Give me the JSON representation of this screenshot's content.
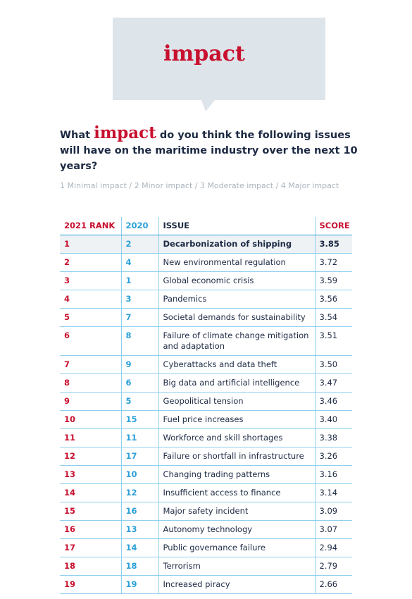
{
  "bubble": {
    "word": "impact"
  },
  "question": {
    "prefix": "What",
    "emphasis": "impact",
    "rest": "do you think the following issues will have on the maritime industry over the next 10 years?"
  },
  "scale": "1 Minimal impact / 2 Minor impact / 3 Moderate impact / 4 Major impact",
  "table": {
    "headers": [
      "2021 RANK",
      "2020",
      "ISSUE",
      "SCORE"
    ],
    "rows": [
      [
        "1",
        "2",
        "Decarbonization of shipping",
        "3.85"
      ],
      [
        "2",
        "4",
        "New environmental regulation",
        "3.72"
      ],
      [
        "3",
        "1",
        "Global economic crisis",
        "3.59"
      ],
      [
        "4",
        "3",
        "Pandemics",
        "3.56"
      ],
      [
        "5",
        "7",
        "Societal demands for sustainability",
        "3.54"
      ],
      [
        "6",
        "8",
        "Failure of climate change mitigation and adaptation",
        "3.51"
      ],
      [
        "7",
        "9",
        "Cyberattacks and data theft",
        "3.50"
      ],
      [
        "8",
        "6",
        "Big data and artificial intelligence",
        "3.47"
      ],
      [
        "9",
        "5",
        "Geopolitical tension",
        "3.46"
      ],
      [
        "10",
        "15",
        "Fuel price increases",
        "3.40"
      ],
      [
        "11",
        "11",
        "Workforce and skill shortages",
        "3.38"
      ],
      [
        "12",
        "17",
        "Failure or shortfall in infrastructure",
        "3.26"
      ],
      [
        "13",
        "10",
        "Changing trading patterns",
        "3.16"
      ],
      [
        "14",
        "12",
        "Insufficient access to finance",
        "3.14"
      ],
      [
        "15",
        "16",
        "Major safety incident",
        "3.09"
      ],
      [
        "16",
        "13",
        "Autonomy technology",
        "3.07"
      ],
      [
        "17",
        "14",
        "Public governance failure",
        "2.94"
      ],
      [
        "18",
        "18",
        "Terrorism",
        "2.79"
      ],
      [
        "19",
        "19",
        "Increased piracy",
        "2.66"
      ]
    ]
  }
}
